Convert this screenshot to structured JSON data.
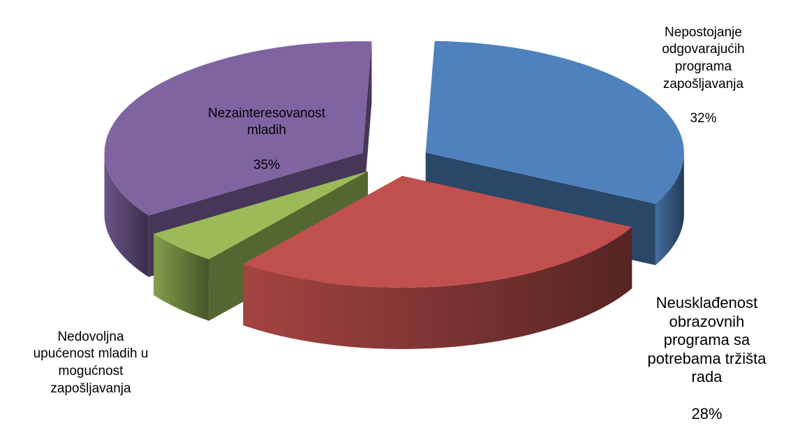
{
  "chart_data": {
    "type": "pie",
    "style": "3d-exploded",
    "slices": [
      {
        "label": "Nepostojanje\nodgovarajućih\nprograma\nzapošljavanja",
        "percent_label": "32%",
        "value": 32,
        "color": "#4F81BD"
      },
      {
        "label": "Neusklađenost\nobrazovnih\nprograma sa\npotrebama tržišta\nrada",
        "percent_label": "28%",
        "value": 28,
        "color": "#C0504D"
      },
      {
        "label": "Nedovoljna\nupućenost mladih u\nmogućnost\nzapošljavanja",
        "percent_label": "",
        "value": 5,
        "color": "#9BBB59"
      },
      {
        "label": "Nezainteresovanost\nmladih",
        "percent_label": "35%",
        "value": 35,
        "color": "#8064A2"
      }
    ]
  }
}
